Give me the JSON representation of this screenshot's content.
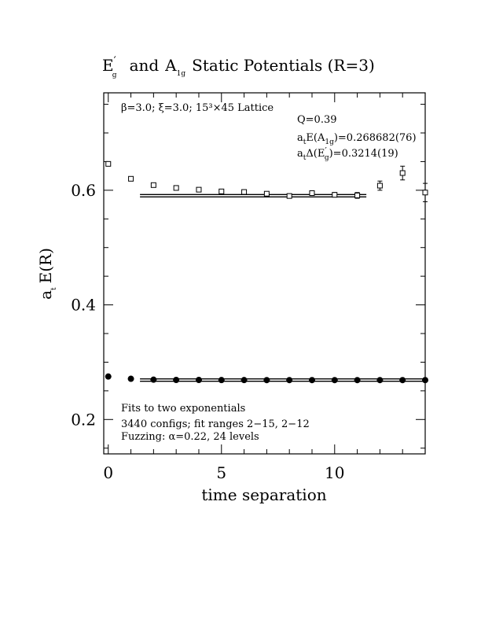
{
  "chart_data": {
    "type": "scatter",
    "title_parts": {
      "e_main": "E",
      "e_prime": "′",
      "e_sub": "g",
      "and": "and",
      "a_main": "A",
      "a_sub": "1g",
      "rest": "Static Potentials (R=3)"
    },
    "xlabel": "time separation",
    "ylabel_parts": {
      "main": "a",
      "sub": "t",
      "rest": "E(R)"
    },
    "xlim": [
      -0.2,
      14
    ],
    "ylim": [
      0.14,
      0.77
    ],
    "x_ticks": [
      0,
      5,
      10
    ],
    "y_ticks": [
      0.2,
      0.4,
      0.6
    ],
    "annotations": {
      "lattice": "β=3.0; ξ=3.0; 15³×45 Lattice",
      "q": "Q=0.39",
      "a1g_parts": {
        "pre": "a",
        "sub_t": "t",
        "mid": "E(A",
        "sub_g": "1g",
        "post": ")=0.268682(76)"
      },
      "eg_parts": {
        "pre": "a",
        "sub_t": "t",
        "mid": "Δ(E",
        "prime": "′",
        "sub_g": "g",
        "post": ")=0.3214(19)"
      },
      "fits": "Fits to two exponentials",
      "configs": "3440 configs; fit ranges 2−15, 2−12",
      "fuzzing": "Fuzzing: α=0.22, 24 levels"
    },
    "series": [
      {
        "marker": "open-square",
        "x": [
          0,
          1,
          2,
          3,
          4,
          5,
          6,
          7,
          8,
          9,
          10,
          11,
          12,
          13,
          14
        ],
        "y": [
          0.646,
          0.62,
          0.609,
          0.604,
          0.601,
          0.598,
          0.597,
          0.594,
          0.59,
          0.595,
          0.592,
          0.591,
          0.608,
          0.63,
          0.596
        ],
        "err": [
          0.001,
          0.001,
          0.001,
          0.001,
          0.001,
          0.001,
          0.002,
          0.002,
          0.003,
          0.003,
          0.004,
          0.005,
          0.008,
          0.012,
          0.016
        ]
      },
      {
        "marker": "filled-circle",
        "x": [
          0,
          1,
          2,
          3,
          4,
          5,
          6,
          7,
          8,
          9,
          10,
          11,
          12,
          13,
          14
        ],
        "y": [
          0.275,
          0.271,
          0.2695,
          0.269,
          0.269,
          0.2688,
          0.2688,
          0.2687,
          0.2687,
          0.2687,
          0.2687,
          0.2687,
          0.2687,
          0.2687,
          0.2687
        ],
        "err": [
          0,
          0,
          0,
          0,
          0,
          0,
          0,
          0,
          0,
          0,
          0,
          0,
          0,
          0,
          0
        ]
      }
    ],
    "fit_lines": [
      {
        "x_range": [
          1.4,
          11.4
        ],
        "y": 0.5905,
        "band": 0.0019
      },
      {
        "x_range": [
          1.4,
          14
        ],
        "y": 0.2687,
        "band": 0.0002
      }
    ]
  }
}
